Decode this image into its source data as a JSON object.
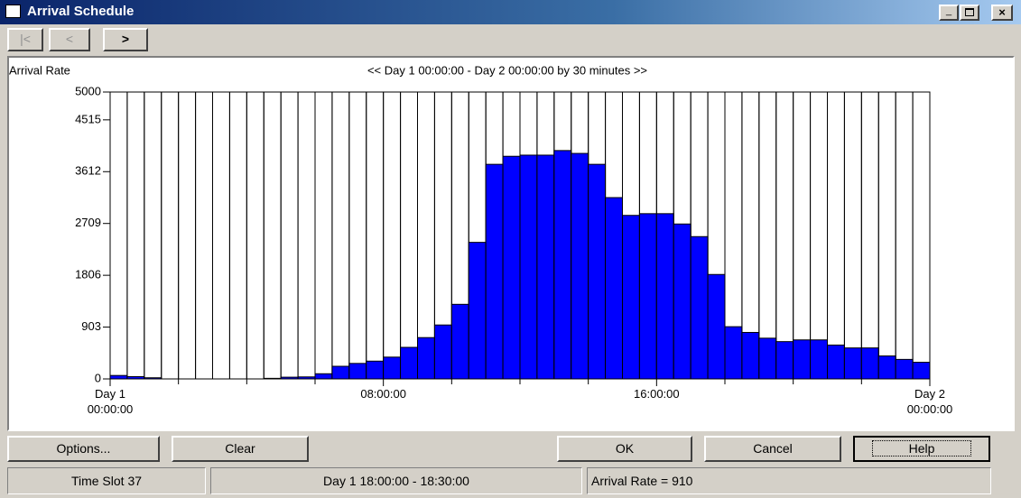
{
  "window": {
    "title": "Arrival Schedule"
  },
  "toolbar": {
    "buttons": [
      "|<",
      "<",
      ">"
    ]
  },
  "chart_data": {
    "type": "histogram",
    "title": "<< Day 1  00:00:00 - Day 2  00:00:00  by 30 minutes >>",
    "y_label": "Arrival Rate",
    "bins": [
      0,
      0.5,
      1,
      1.5,
      2,
      2.5,
      3,
      3.5,
      4,
      4.5,
      5,
      5.5,
      6,
      6.5,
      7,
      7.5,
      8,
      8.5,
      9,
      9.5,
      10,
      10.5,
      11,
      11.5,
      12,
      12.5,
      13,
      13.5,
      14,
      14.5,
      15,
      15.5,
      16,
      16.5,
      17,
      17.5,
      18,
      18.5,
      19,
      19.5,
      20,
      20.5,
      21,
      21.5,
      22,
      22.5,
      23,
      23.5,
      24
    ],
    "values": [
      60,
      40,
      20,
      0,
      0,
      0,
      0,
      0,
      0,
      10,
      30,
      35,
      90,
      220,
      270,
      310,
      380,
      550,
      720,
      940,
      1300,
      2380,
      3740,
      3880,
      3900,
      3900,
      3980,
      3930,
      3740,
      3160,
      2850,
      2880,
      2880,
      2700,
      2480,
      1820,
      910,
      810,
      710,
      650,
      680,
      680,
      590,
      540,
      540,
      400,
      340,
      290
    ],
    "color": "#0000ff",
    "xlim": [
      0,
      24
    ],
    "xticks": [
      {
        "value": 0,
        "label": "Day 1\n00:00:00"
      },
      {
        "value": 8,
        "label": "08:00:00"
      },
      {
        "value": 16,
        "label": "16:00:00"
      },
      {
        "value": 24,
        "label": "Day 2\n00:00:00"
      }
    ],
    "x_minor_ticks": [
      2,
      4,
      6,
      10,
      12,
      14,
      18,
      20,
      22
    ],
    "ylim": [
      0,
      5000
    ],
    "yticks": [
      0,
      903,
      1806,
      2709,
      3612,
      4515,
      5000
    ]
  },
  "buttons": [
    "Options...",
    "Clear",
    "OK",
    "Cancel",
    "Help"
  ],
  "status_bar": [
    "Time Slot 37",
    "Day 1  18:00:00 - 18:30:00",
    "Arrival Rate = 910"
  ]
}
